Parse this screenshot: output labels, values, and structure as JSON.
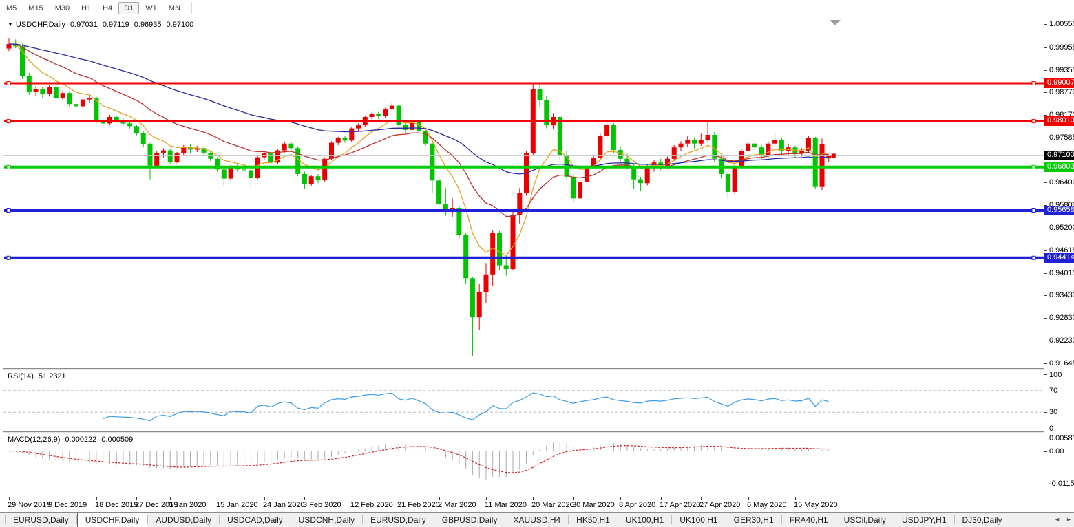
{
  "toolbar": {
    "timeframes": [
      "M5",
      "M15",
      "M30",
      "H1",
      "H4",
      "D1",
      "W1",
      "MN"
    ],
    "active": "D1"
  },
  "title": {
    "symbol": "USDCHF,Daily",
    "open": "0.97031",
    "high": "0.97119",
    "low": "0.96935",
    "close": "0.97100"
  },
  "price_axis": {
    "ticks": [
      "1.00555",
      "0.99955",
      "0.99355",
      "0.98770",
      "0.98170",
      "0.97585",
      "0.96400",
      "0.95800",
      "0.95200",
      "0.94615",
      "0.94015",
      "0.93430",
      "0.92830",
      "0.92230",
      "0.91645"
    ],
    "current_price": "0.97100",
    "current_box_color": "#000000"
  },
  "levels": [
    {
      "label": "0.99007",
      "value": 0.99007,
      "color": "#f20000",
      "width": 3
    },
    {
      "label": "0.98010",
      "value": 0.9801,
      "color": "#f20000",
      "width": 3
    },
    {
      "label": "0.96803",
      "value": 0.96803,
      "color": "#00cc00",
      "width": 4
    },
    {
      "label": "0.95658",
      "value": 0.95658,
      "color": "#2020d6",
      "width": 4
    },
    {
      "label": "0.94414",
      "value": 0.94414,
      "color": "#2020d6",
      "width": 4
    }
  ],
  "indicators": {
    "rsi": {
      "name": "RSI(14)",
      "value": "51.2321",
      "period": 14,
      "axis": [
        "100",
        "70",
        "30",
        "0"
      ],
      "line_color": "#3e9be8",
      "level_lines": [
        70,
        30
      ]
    },
    "macd": {
      "name": "MACD(12,26,9)",
      "main_value": "0.000222",
      "signal_value": "0.000509",
      "fast": 12,
      "slow": 26,
      "signal": 9,
      "axis_top": "0.005818",
      "axis_zero": "0.00",
      "axis_bottom": "-0.01151",
      "bar_color": "#ababab",
      "signal_color": "#d42222"
    }
  },
  "chart_data": {
    "type": "candlestick",
    "symbol": "USDCHF",
    "timeframe": "Daily",
    "bull_color": "#ea0000",
    "bear_color": "#00c400",
    "price_top": 1.00745,
    "price_bottom": 0.91514,
    "ma": [
      {
        "period": 8,
        "color": "#e8a020"
      },
      {
        "period": 21,
        "color": "#c03030"
      },
      {
        "period": 55,
        "color": "#2a2aa0"
      }
    ],
    "date_labels": [
      [
        "29 Nov 2019",
        0
      ],
      [
        "9 Dec 2019",
        6
      ],
      [
        "18 Dec 2019",
        13
      ],
      [
        "27 Dec 2019",
        19
      ],
      [
        "6 Jan 2020",
        24
      ],
      [
        "15 Jan 2020",
        31
      ],
      [
        "24 Jan 2020",
        38
      ],
      [
        "3 Feb 2020",
        44
      ],
      [
        "12 Feb 2020",
        51
      ],
      [
        "21 Feb 2020",
        58
      ],
      [
        "2 Mar 2020",
        64
      ],
      [
        "11 Mar 2020",
        71
      ],
      [
        "20 Mar 2020",
        78
      ],
      [
        "30 Mar 2020",
        84
      ],
      [
        "8 Apr 2020",
        91
      ],
      [
        "17 Apr 2020",
        97
      ],
      [
        "27 Apr 2020",
        103
      ],
      [
        "6 May 2020",
        110
      ],
      [
        "15 May 2020",
        117
      ]
    ],
    "candles": [
      [
        0.9992,
        1.002,
        0.9985,
        1.0004
      ],
      [
        1.0004,
        1.0016,
        0.9993,
        0.9998
      ],
      [
        0.9998,
        1.0005,
        0.9912,
        0.992
      ],
      [
        0.992,
        0.9928,
        0.987,
        0.9878
      ],
      [
        0.9878,
        0.9893,
        0.9868,
        0.9885
      ],
      [
        0.9885,
        0.9892,
        0.9862,
        0.9872
      ],
      [
        0.9872,
        0.9897,
        0.9866,
        0.989
      ],
      [
        0.989,
        0.9896,
        0.9855,
        0.9862
      ],
      [
        0.9862,
        0.9882,
        0.9856,
        0.9875
      ],
      [
        0.9875,
        0.988,
        0.984,
        0.9846
      ],
      [
        0.9846,
        0.9856,
        0.9832,
        0.984
      ],
      [
        0.984,
        0.9863,
        0.9836,
        0.9858
      ],
      [
        0.9858,
        0.987,
        0.985,
        0.9862
      ],
      [
        0.9862,
        0.9866,
        0.9795,
        0.98
      ],
      [
        0.98,
        0.9812,
        0.9788,
        0.9795
      ],
      [
        0.9795,
        0.9818,
        0.979,
        0.9812
      ],
      [
        0.9812,
        0.9816,
        0.9796,
        0.9802
      ],
      [
        0.9802,
        0.9808,
        0.979,
        0.9795
      ],
      [
        0.9795,
        0.98,
        0.9782,
        0.9788
      ],
      [
        0.9788,
        0.9792,
        0.9764,
        0.977
      ],
      [
        0.977,
        0.9775,
        0.9732,
        0.974
      ],
      [
        0.974,
        0.9744,
        0.9648,
        0.9684
      ],
      [
        0.9684,
        0.9722,
        0.968,
        0.9718
      ],
      [
        0.9718,
        0.973,
        0.9706,
        0.9724
      ],
      [
        0.9724,
        0.9728,
        0.9688,
        0.9694
      ],
      [
        0.9694,
        0.972,
        0.969,
        0.9716
      ],
      [
        0.9716,
        0.9738,
        0.971,
        0.9734
      ],
      [
        0.9734,
        0.974,
        0.9718,
        0.9726
      ],
      [
        0.9726,
        0.9736,
        0.972,
        0.973
      ],
      [
        0.973,
        0.9734,
        0.9712,
        0.9718
      ],
      [
        0.9718,
        0.9724,
        0.9696,
        0.9702
      ],
      [
        0.9702,
        0.9706,
        0.9668,
        0.9674
      ],
      [
        0.9674,
        0.968,
        0.963,
        0.965
      ],
      [
        0.965,
        0.9686,
        0.9645,
        0.9682
      ],
      [
        0.9682,
        0.9688,
        0.9668,
        0.9674
      ],
      [
        0.9674,
        0.968,
        0.9662,
        0.9672
      ],
      [
        0.9672,
        0.9676,
        0.9628,
        0.9652
      ],
      [
        0.9652,
        0.971,
        0.9648,
        0.9706
      ],
      [
        0.9706,
        0.9722,
        0.97,
        0.9716
      ],
      [
        0.9716,
        0.972,
        0.9686,
        0.9692
      ],
      [
        0.9692,
        0.9728,
        0.9688,
        0.9724
      ],
      [
        0.9724,
        0.9748,
        0.9718,
        0.9742
      ],
      [
        0.9742,
        0.9748,
        0.9724,
        0.973
      ],
      [
        0.973,
        0.9735,
        0.9656,
        0.9662
      ],
      [
        0.9662,
        0.9668,
        0.9622,
        0.9636
      ],
      [
        0.9636,
        0.966,
        0.963,
        0.9656
      ],
      [
        0.9656,
        0.9662,
        0.9638,
        0.9646
      ],
      [
        0.9646,
        0.9706,
        0.9642,
        0.9702
      ],
      [
        0.9702,
        0.9748,
        0.9698,
        0.9744
      ],
      [
        0.9744,
        0.976,
        0.9738,
        0.9756
      ],
      [
        0.9756,
        0.9762,
        0.9744,
        0.975
      ],
      [
        0.975,
        0.9786,
        0.9746,
        0.9782
      ],
      [
        0.9782,
        0.9795,
        0.9776,
        0.979
      ],
      [
        0.979,
        0.9816,
        0.9786,
        0.9812
      ],
      [
        0.9812,
        0.9824,
        0.9806,
        0.982
      ],
      [
        0.982,
        0.9825,
        0.9806,
        0.9814
      ],
      [
        0.9814,
        0.9836,
        0.981,
        0.9832
      ],
      [
        0.9832,
        0.9848,
        0.9828,
        0.9842
      ],
      [
        0.9842,
        0.9845,
        0.9786,
        0.9792
      ],
      [
        0.9792,
        0.9796,
        0.977,
        0.9778
      ],
      [
        0.9778,
        0.9806,
        0.9774,
        0.9802
      ],
      [
        0.9802,
        0.9806,
        0.9768,
        0.9774
      ],
      [
        0.9774,
        0.9778,
        0.9736,
        0.9742
      ],
      [
        0.9742,
        0.9746,
        0.9613,
        0.9645
      ],
      [
        0.9645,
        0.965,
        0.9568,
        0.9582
      ],
      [
        0.9582,
        0.9625,
        0.9552,
        0.9562
      ],
      [
        0.9562,
        0.9598,
        0.9548,
        0.9572
      ],
      [
        0.9572,
        0.9578,
        0.9492,
        0.9502
      ],
      [
        0.9502,
        0.9508,
        0.9372,
        0.9388
      ],
      [
        0.9388,
        0.9392,
        0.9182,
        0.9285
      ],
      [
        0.9285,
        0.9372,
        0.9252,
        0.9352
      ],
      [
        0.9352,
        0.9428,
        0.9322,
        0.9398
      ],
      [
        0.9398,
        0.9515,
        0.9368,
        0.9508
      ],
      [
        0.9508,
        0.9512,
        0.9408,
        0.9422
      ],
      [
        0.9422,
        0.9448,
        0.9395,
        0.9412
      ],
      [
        0.9412,
        0.9562,
        0.9408,
        0.9555
      ],
      [
        0.9555,
        0.9625,
        0.9532,
        0.9612
      ],
      [
        0.9612,
        0.9722,
        0.9605,
        0.9718
      ],
      [
        0.9718,
        0.9901,
        0.9712,
        0.9885
      ],
      [
        0.9885,
        0.9898,
        0.984,
        0.9856
      ],
      [
        0.9856,
        0.9868,
        0.9782,
        0.979
      ],
      [
        0.979,
        0.9822,
        0.978,
        0.9812
      ],
      [
        0.9812,
        0.9815,
        0.97,
        0.971
      ],
      [
        0.971,
        0.9722,
        0.9648,
        0.9655
      ],
      [
        0.9655,
        0.9662,
        0.9588,
        0.9598
      ],
      [
        0.9598,
        0.965,
        0.9592,
        0.9642
      ],
      [
        0.9642,
        0.9688,
        0.9635,
        0.9682
      ],
      [
        0.9682,
        0.9712,
        0.9675,
        0.9705
      ],
      [
        0.9705,
        0.9768,
        0.97,
        0.9762
      ],
      [
        0.9762,
        0.9802,
        0.9755,
        0.9792
      ],
      [
        0.9792,
        0.9796,
        0.9718,
        0.9725
      ],
      [
        0.9725,
        0.9732,
        0.9695,
        0.9702
      ],
      [
        0.9702,
        0.9715,
        0.9675,
        0.9682
      ],
      [
        0.9682,
        0.9688,
        0.9622,
        0.9648
      ],
      [
        0.9648,
        0.9655,
        0.9618,
        0.9638
      ],
      [
        0.9638,
        0.9688,
        0.9632,
        0.9682
      ],
      [
        0.9682,
        0.97,
        0.9668,
        0.9692
      ],
      [
        0.9692,
        0.9702,
        0.9672,
        0.9682
      ],
      [
        0.9682,
        0.9708,
        0.9676,
        0.9702
      ],
      [
        0.9702,
        0.9738,
        0.9696,
        0.9732
      ],
      [
        0.9732,
        0.9748,
        0.9722,
        0.9742
      ],
      [
        0.9742,
        0.9762,
        0.9732,
        0.9752
      ],
      [
        0.9752,
        0.9758,
        0.9728,
        0.9742
      ],
      [
        0.9742,
        0.9768,
        0.9736,
        0.9752
      ],
      [
        0.9752,
        0.98,
        0.9748,
        0.9765
      ],
      [
        0.9765,
        0.9772,
        0.9692,
        0.9702
      ],
      [
        0.9702,
        0.9712,
        0.9652,
        0.9662
      ],
      [
        0.9662,
        0.9668,
        0.9598,
        0.9615
      ],
      [
        0.9615,
        0.9688,
        0.961,
        0.9682
      ],
      [
        0.9682,
        0.9728,
        0.9676,
        0.9722
      ],
      [
        0.9722,
        0.9748,
        0.9708,
        0.9742
      ],
      [
        0.9742,
        0.9752,
        0.9722,
        0.9732
      ],
      [
        0.9732,
        0.9738,
        0.9702,
        0.9712
      ],
      [
        0.9712,
        0.9748,
        0.9706,
        0.9742
      ],
      [
        0.9742,
        0.9768,
        0.9736,
        0.9752
      ],
      [
        0.9752,
        0.9756,
        0.9712,
        0.9722
      ],
      [
        0.9722,
        0.9742,
        0.9712,
        0.9732
      ],
      [
        0.9732,
        0.9736,
        0.9705,
        0.9716
      ],
      [
        0.9716,
        0.973,
        0.9708,
        0.9722
      ],
      [
        0.9722,
        0.9762,
        0.9716,
        0.9756
      ],
      [
        0.9756,
        0.976,
        0.9622,
        0.9628
      ],
      [
        0.9628,
        0.9755,
        0.962,
        0.974
      ],
      [
        0.97031,
        0.97119,
        0.96935,
        0.971
      ]
    ]
  },
  "tabs": {
    "items": [
      "EURUSD,Daily",
      "USDCHF,Daily",
      "AUDUSD,Daily",
      "USDCAD,Daily",
      "USDCNH,Daily",
      "EURUSD,Daily",
      "GBPUSD,Daily",
      "XAUUSD,H4",
      "HK50,H1",
      "UK100,H1",
      "UK100,H1",
      "GER30,H1",
      "FRA40,H1",
      "USOil,Daily",
      "USDJPY,H1",
      "DJ30,Daily"
    ],
    "active_index": 1,
    "scroll_left_icon": "◄",
    "scroll_right_icon": "►"
  }
}
